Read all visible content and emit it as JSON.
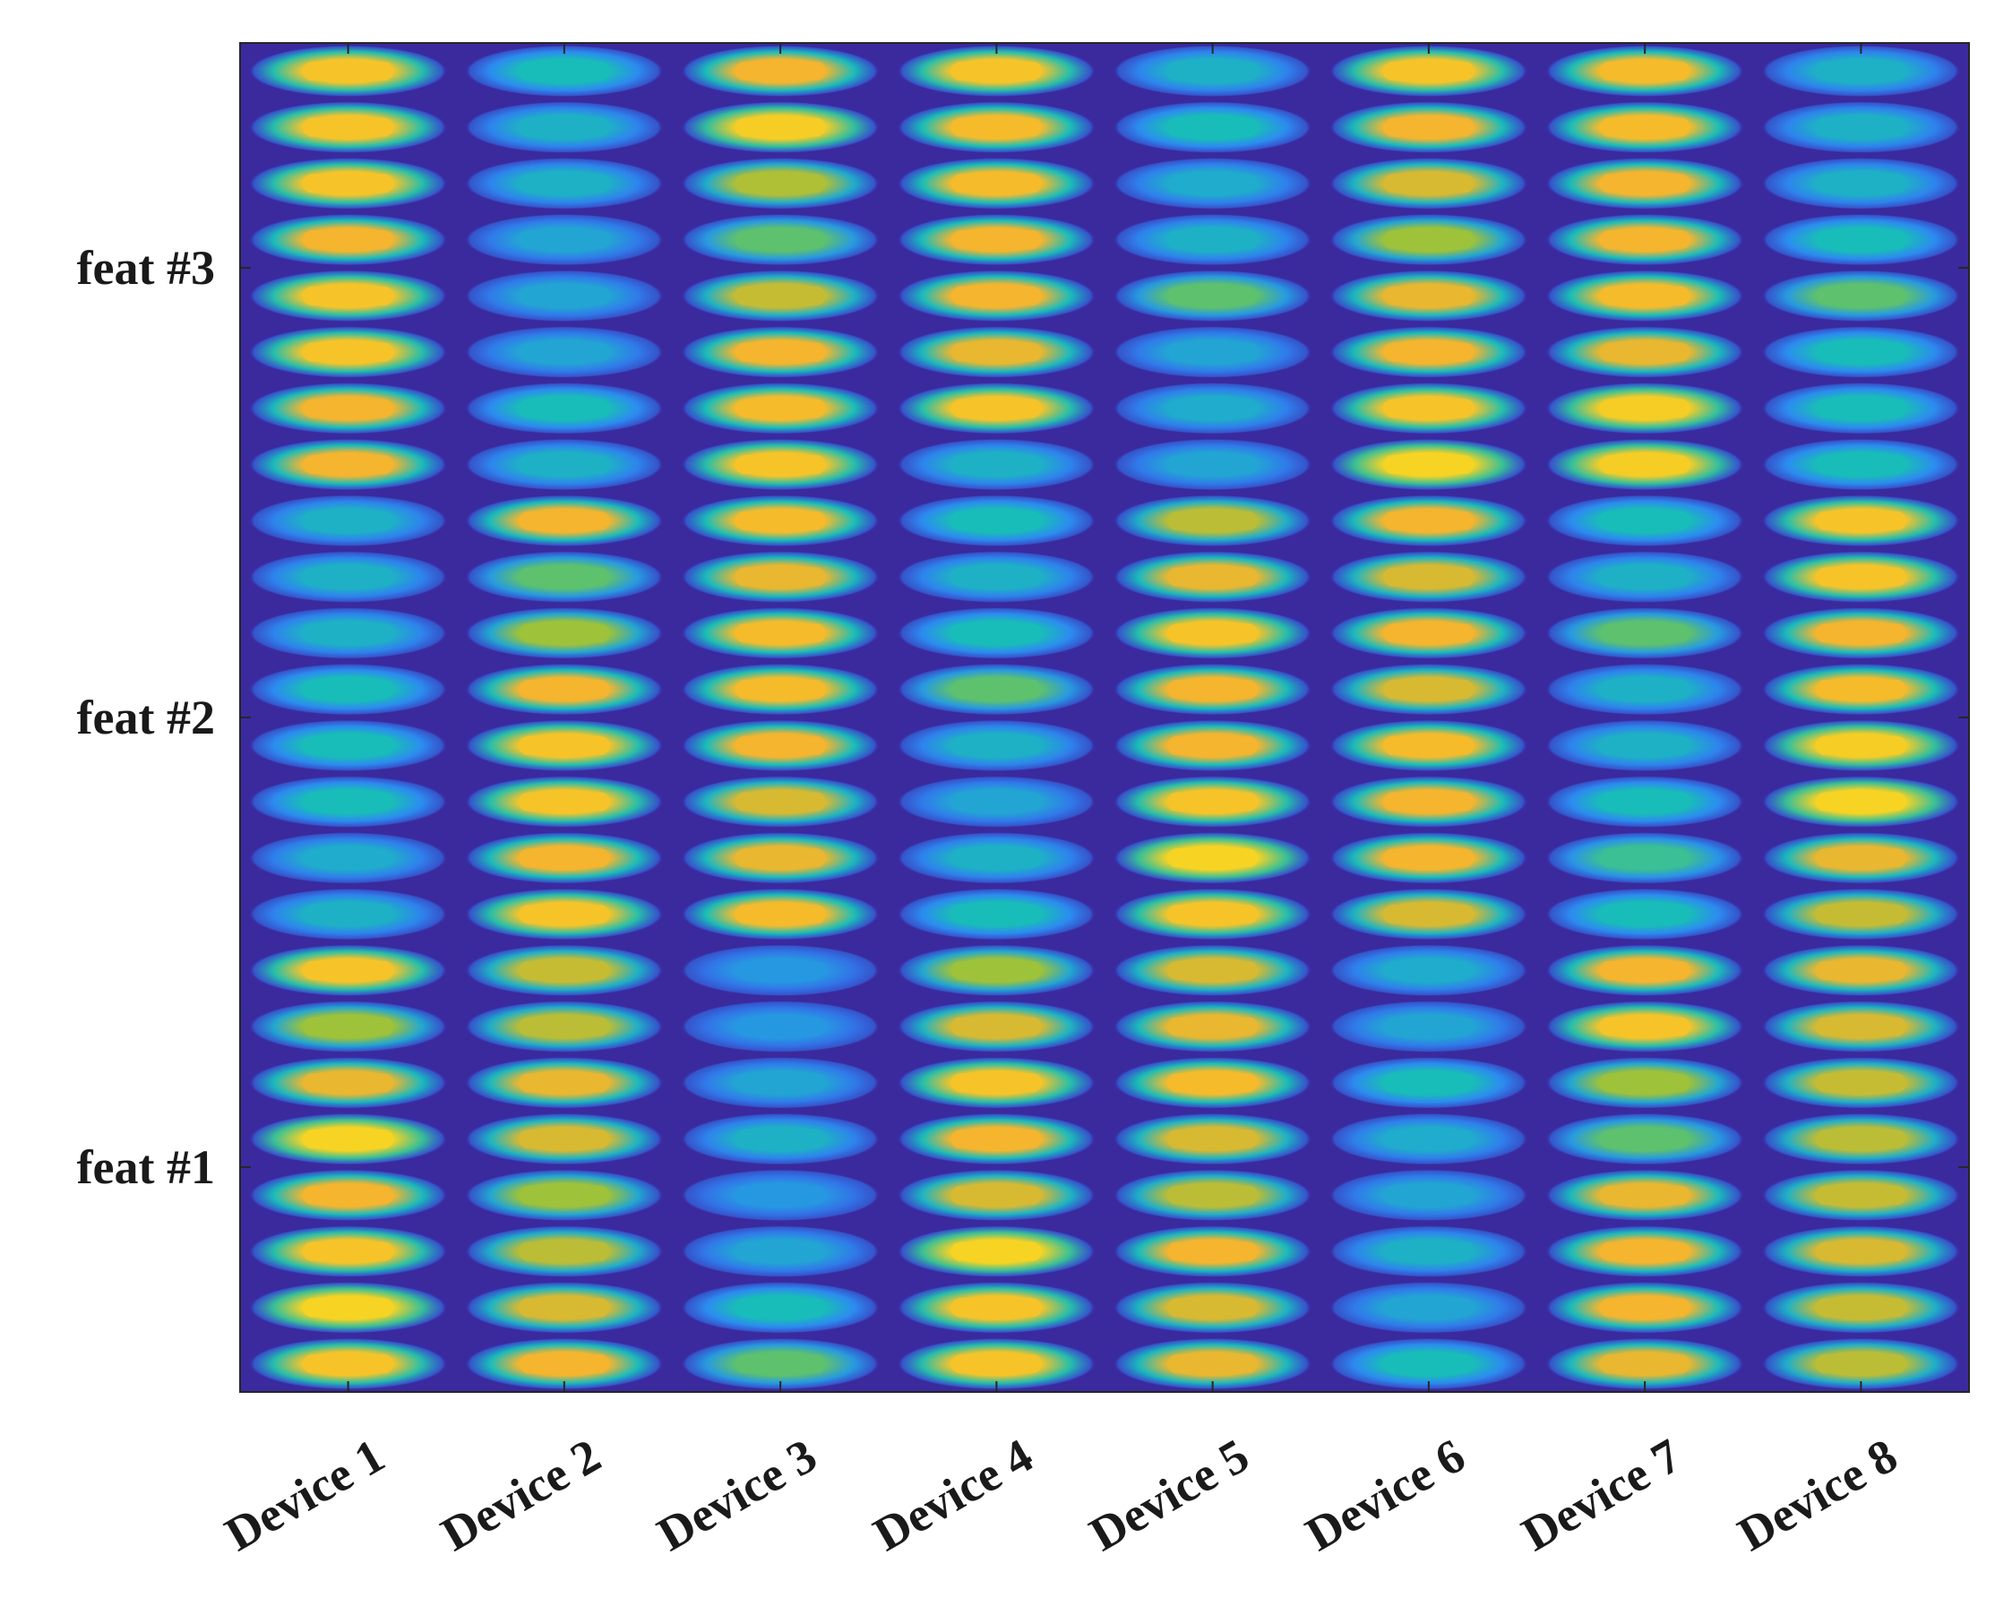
{
  "chart_data": {
    "type": "heatmap",
    "title": "",
    "xlabel": "",
    "ylabel": "",
    "colormap": "parula",
    "colors": {
      "background": "#3a2a9e",
      "low": "#3e3fd6",
      "mid_low": "#2c8cf0",
      "mid": "#19bdb8",
      "mid_high": "#8cc43c",
      "high": "#f5b52e",
      "max": "#f8f01a"
    },
    "value_range": [
      0,
      1
    ],
    "grid": false,
    "x_categories": [
      "Device 1",
      "Device 2",
      "Device 3",
      "Device 4",
      "Device 5",
      "Device 6",
      "Device 7",
      "Device 8"
    ],
    "y_ticks": [
      {
        "label": "feat #1",
        "row": 4
      },
      {
        "label": "feat #2",
        "row": 12
      },
      {
        "label": "feat #3",
        "row": 20
      }
    ],
    "rows": 24,
    "rows_order": "bottom-to-top",
    "values": [
      [
        0.85,
        0.8,
        0.55,
        0.85,
        0.78,
        0.45,
        0.78,
        0.7
      ],
      [
        0.9,
        0.75,
        0.45,
        0.85,
        0.75,
        0.35,
        0.8,
        0.72
      ],
      [
        0.85,
        0.7,
        0.35,
        0.9,
        0.8,
        0.4,
        0.8,
        0.75
      ],
      [
        0.8,
        0.65,
        0.3,
        0.75,
        0.7,
        0.35,
        0.78,
        0.72
      ],
      [
        0.9,
        0.75,
        0.4,
        0.8,
        0.75,
        0.38,
        0.55,
        0.7
      ],
      [
        0.78,
        0.78,
        0.35,
        0.85,
        0.82,
        0.45,
        0.65,
        0.72
      ],
      [
        0.65,
        0.7,
        0.3,
        0.75,
        0.78,
        0.35,
        0.85,
        0.75
      ],
      [
        0.85,
        0.72,
        0.3,
        0.65,
        0.75,
        0.38,
        0.8,
        0.78
      ],
      [
        0.4,
        0.85,
        0.82,
        0.45,
        0.85,
        0.75,
        0.45,
        0.72
      ],
      [
        0.38,
        0.8,
        0.78,
        0.4,
        0.9,
        0.8,
        0.5,
        0.78
      ],
      [
        0.45,
        0.85,
        0.75,
        0.35,
        0.85,
        0.8,
        0.45,
        0.9
      ],
      [
        0.45,
        0.85,
        0.8,
        0.4,
        0.8,
        0.82,
        0.4,
        0.88
      ],
      [
        0.45,
        0.8,
        0.82,
        0.55,
        0.8,
        0.75,
        0.4,
        0.82
      ],
      [
        0.4,
        0.65,
        0.82,
        0.45,
        0.85,
        0.8,
        0.55,
        0.8
      ],
      [
        0.4,
        0.55,
        0.78,
        0.4,
        0.78,
        0.75,
        0.4,
        0.85
      ],
      [
        0.4,
        0.8,
        0.82,
        0.45,
        0.7,
        0.8,
        0.45,
        0.85
      ],
      [
        0.8,
        0.4,
        0.85,
        0.4,
        0.35,
        0.9,
        0.88,
        0.45
      ],
      [
        0.8,
        0.45,
        0.82,
        0.85,
        0.38,
        0.85,
        0.88,
        0.45
      ],
      [
        0.85,
        0.35,
        0.8,
        0.78,
        0.35,
        0.8,
        0.78,
        0.45
      ],
      [
        0.85,
        0.35,
        0.72,
        0.8,
        0.55,
        0.78,
        0.82,
        0.55
      ],
      [
        0.8,
        0.35,
        0.55,
        0.8,
        0.4,
        0.65,
        0.8,
        0.45
      ],
      [
        0.85,
        0.4,
        0.68,
        0.82,
        0.38,
        0.75,
        0.8,
        0.4
      ],
      [
        0.85,
        0.4,
        0.88,
        0.82,
        0.45,
        0.8,
        0.82,
        0.4
      ],
      [
        0.85,
        0.45,
        0.8,
        0.85,
        0.4,
        0.85,
        0.82,
        0.4
      ]
    ]
  }
}
